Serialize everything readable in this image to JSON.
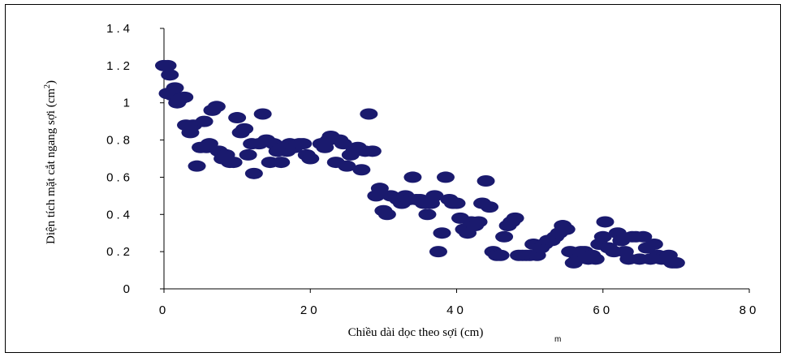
{
  "chart_data": {
    "type": "scatter",
    "title": "",
    "xlabel": "Chiều dài dọc theo sợi (cm)",
    "xlabel_extra": "m",
    "ylabel": "Diện tích mặt cắt ngang sợi (cm",
    "ylabel_sup": "2",
    "ylabel_close": ")",
    "xlim": [
      0,
      80
    ],
    "ylim": [
      0,
      1.4
    ],
    "x_tick_labels": [
      "0",
      "20",
      "40",
      "60",
      "80"
    ],
    "y_tick_labels": [
      "0",
      "0.2",
      "0.4",
      "0.6",
      "0.8",
      "1",
      "1.2",
      "1.4"
    ],
    "x_ticks": [
      0,
      20,
      40,
      60,
      80
    ],
    "y_ticks": [
      0,
      0.2,
      0.4,
      0.6,
      0.8,
      1.0,
      1.2,
      1.4
    ],
    "grid": false,
    "marker_color": "#1a1a6e",
    "points": [
      [
        0,
        1.2
      ],
      [
        0.5,
        1.2
      ],
      [
        0.8,
        1.15
      ],
      [
        0.5,
        1.05
      ],
      [
        1.2,
        1.04
      ],
      [
        1.5,
        1.08
      ],
      [
        1.8,
        1.0
      ],
      [
        2.2,
        1.02
      ],
      [
        2.8,
        1.03
      ],
      [
        3.0,
        0.88
      ],
      [
        3.6,
        0.84
      ],
      [
        4.0,
        0.88
      ],
      [
        4.5,
        0.66
      ],
      [
        5.0,
        0.76
      ],
      [
        5.5,
        0.9
      ],
      [
        5.8,
        0.76
      ],
      [
        6.2,
        0.78
      ],
      [
        6.6,
        0.96
      ],
      [
        7.2,
        0.98
      ],
      [
        7.5,
        0.74
      ],
      [
        8.0,
        0.7
      ],
      [
        8.5,
        0.72
      ],
      [
        9.0,
        0.68
      ],
      [
        9.5,
        0.68
      ],
      [
        10.0,
        0.92
      ],
      [
        10.5,
        0.84
      ],
      [
        11.0,
        0.86
      ],
      [
        11.5,
        0.72
      ],
      [
        12.0,
        0.78
      ],
      [
        12.3,
        0.62
      ],
      [
        13.0,
        0.78
      ],
      [
        13.5,
        0.94
      ],
      [
        14.0,
        0.8
      ],
      [
        14.5,
        0.68
      ],
      [
        15.0,
        0.78
      ],
      [
        15.5,
        0.74
      ],
      [
        16.0,
        0.68
      ],
      [
        16.3,
        0.76
      ],
      [
        16.8,
        0.74
      ],
      [
        17.2,
        0.78
      ],
      [
        17.8,
        0.76
      ],
      [
        18.5,
        0.78
      ],
      [
        19.0,
        0.78
      ],
      [
        19.5,
        0.72
      ],
      [
        20.0,
        0.7
      ],
      [
        21.5,
        0.78
      ],
      [
        22.0,
        0.76
      ],
      [
        22.5,
        0.8
      ],
      [
        22.8,
        0.82
      ],
      [
        23.5,
        0.68
      ],
      [
        24.0,
        0.8
      ],
      [
        24.5,
        0.78
      ],
      [
        25.0,
        0.66
      ],
      [
        25.5,
        0.72
      ],
      [
        26.0,
        0.74
      ],
      [
        26.5,
        0.76
      ],
      [
        27.0,
        0.64
      ],
      [
        27.5,
        0.74
      ],
      [
        28.0,
        0.94
      ],
      [
        28.5,
        0.74
      ],
      [
        29.0,
        0.5
      ],
      [
        29.5,
        0.54
      ],
      [
        30.0,
        0.42
      ],
      [
        30.5,
        0.4
      ],
      [
        31.0,
        0.5
      ],
      [
        32.0,
        0.48
      ],
      [
        32.5,
        0.46
      ],
      [
        33.0,
        0.5
      ],
      [
        33.5,
        0.48
      ],
      [
        34.0,
        0.6
      ],
      [
        34.5,
        0.48
      ],
      [
        35.0,
        0.48
      ],
      [
        35.5,
        0.46
      ],
      [
        36.0,
        0.4
      ],
      [
        36.5,
        0.46
      ],
      [
        37.0,
        0.5
      ],
      [
        37.5,
        0.2
      ],
      [
        38.0,
        0.3
      ],
      [
        38.5,
        0.6
      ],
      [
        39.0,
        0.48
      ],
      [
        39.5,
        0.46
      ],
      [
        40.0,
        0.46
      ],
      [
        40.5,
        0.38
      ],
      [
        41.0,
        0.32
      ],
      [
        41.5,
        0.3
      ],
      [
        42.0,
        0.36
      ],
      [
        42.5,
        0.34
      ],
      [
        43.0,
        0.36
      ],
      [
        43.5,
        0.46
      ],
      [
        44.0,
        0.58
      ],
      [
        44.5,
        0.44
      ],
      [
        45.0,
        0.2
      ],
      [
        45.5,
        0.18
      ],
      [
        46.0,
        0.18
      ],
      [
        46.5,
        0.28
      ],
      [
        47.0,
        0.34
      ],
      [
        47.5,
        0.36
      ],
      [
        48.0,
        0.38
      ],
      [
        48.5,
        0.18
      ],
      [
        49.0,
        0.18
      ],
      [
        49.5,
        0.18
      ],
      [
        50.0,
        0.18
      ],
      [
        50.5,
        0.24
      ],
      [
        51.0,
        0.18
      ],
      [
        51.5,
        0.22
      ],
      [
        52.0,
        0.24
      ],
      [
        52.5,
        0.26
      ],
      [
        53.0,
        0.26
      ],
      [
        53.5,
        0.28
      ],
      [
        54.0,
        0.3
      ],
      [
        54.5,
        0.34
      ],
      [
        55.0,
        0.32
      ],
      [
        55.5,
        0.2
      ],
      [
        56.0,
        0.14
      ],
      [
        56.5,
        0.16
      ],
      [
        57.0,
        0.2
      ],
      [
        57.5,
        0.2
      ],
      [
        58.0,
        0.16
      ],
      [
        58.5,
        0.18
      ],
      [
        59.0,
        0.16
      ],
      [
        59.5,
        0.24
      ],
      [
        60.0,
        0.28
      ],
      [
        60.3,
        0.36
      ],
      [
        60.8,
        0.22
      ],
      [
        61.5,
        0.2
      ],
      [
        62.0,
        0.3
      ],
      [
        62.5,
        0.26
      ],
      [
        63.0,
        0.2
      ],
      [
        63.5,
        0.16
      ],
      [
        64.0,
        0.28
      ],
      [
        64.5,
        0.28
      ],
      [
        65.0,
        0.16
      ],
      [
        65.5,
        0.28
      ],
      [
        66.0,
        0.22
      ],
      [
        66.5,
        0.16
      ],
      [
        67.0,
        0.24
      ],
      [
        67.5,
        0.18
      ],
      [
        68.0,
        0.16
      ],
      [
        68.5,
        0.16
      ],
      [
        69.0,
        0.18
      ],
      [
        69.5,
        0.14
      ],
      [
        70.0,
        0.14
      ]
    ]
  }
}
